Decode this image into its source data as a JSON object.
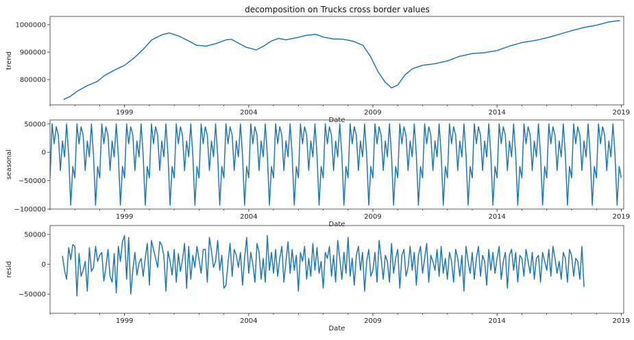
{
  "chart_data": {
    "title": "decomposition on Trucks cross border values",
    "xlabel": "Date",
    "x_ticks": [
      "1999",
      "2004",
      "2009",
      "2014",
      "2019"
    ],
    "x_range_years": [
      1996.0,
      2019.1
    ],
    "panels": [
      {
        "name": "trend",
        "type": "line",
        "ylabel": "trend",
        "ylim": [
          708000,
          1030000
        ],
        "y_ticks": [
          800000,
          900000,
          1000000
        ],
        "y_tick_labels": [
          "800000",
          "900000",
          "1000000"
        ],
        "anchors": [
          [
            1996.55,
            728000
          ],
          [
            1996.8,
            738000
          ],
          [
            1997.1,
            758000
          ],
          [
            1997.5,
            778000
          ],
          [
            1997.9,
            793000
          ],
          [
            1998.2,
            815000
          ],
          [
            1998.6,
            835000
          ],
          [
            1999.0,
            852000
          ],
          [
            1999.4,
            880000
          ],
          [
            1999.8,
            915000
          ],
          [
            2000.1,
            945000
          ],
          [
            2000.5,
            963000
          ],
          [
            2000.8,
            970000
          ],
          [
            2001.2,
            958000
          ],
          [
            2001.6,
            940000
          ],
          [
            2001.9,
            925000
          ],
          [
            2002.3,
            922000
          ],
          [
            2002.7,
            932000
          ],
          [
            2003.1,
            945000
          ],
          [
            2003.3,
            947000
          ],
          [
            2003.6,
            932000
          ],
          [
            2003.9,
            918000
          ],
          [
            2004.3,
            908000
          ],
          [
            2004.6,
            922000
          ],
          [
            2004.9,
            940000
          ],
          [
            2005.2,
            950000
          ],
          [
            2005.5,
            945000
          ],
          [
            2005.9,
            952000
          ],
          [
            2006.3,
            961000
          ],
          [
            2006.7,
            965000
          ],
          [
            2007.0,
            955000
          ],
          [
            2007.4,
            948000
          ],
          [
            2007.8,
            947000
          ],
          [
            2008.2,
            940000
          ],
          [
            2008.6,
            925000
          ],
          [
            2008.9,
            885000
          ],
          [
            2009.2,
            830000
          ],
          [
            2009.5,
            790000
          ],
          [
            2009.75,
            770000
          ],
          [
            2010.0,
            780000
          ],
          [
            2010.3,
            818000
          ],
          [
            2010.6,
            840000
          ],
          [
            2011.0,
            852000
          ],
          [
            2011.5,
            858000
          ],
          [
            2012.0,
            868000
          ],
          [
            2012.5,
            885000
          ],
          [
            2013.0,
            895000
          ],
          [
            2013.5,
            898000
          ],
          [
            2014.0,
            906000
          ],
          [
            2014.5,
            922000
          ],
          [
            2015.0,
            935000
          ],
          [
            2015.5,
            942000
          ],
          [
            2016.0,
            952000
          ],
          [
            2016.5,
            965000
          ],
          [
            2017.0,
            978000
          ],
          [
            2017.5,
            990000
          ],
          [
            2018.0,
            998000
          ],
          [
            2018.5,
            1010000
          ],
          [
            2018.95,
            1015000
          ]
        ]
      },
      {
        "name": "seasonal",
        "type": "line",
        "ylabel": "seasonal",
        "ylim": [
          -100000,
          57000
        ],
        "y_ticks": [
          -100000,
          -50000,
          0,
          50000
        ],
        "y_tick_labels": [
          "−100000",
          "−50000",
          "0",
          "50000"
        ],
        "start_year": 1996.0,
        "months": 277,
        "pattern": [
          -45000,
          50000,
          15000,
          45000,
          30000,
          -32000,
          20000,
          -8000,
          50000,
          -5000,
          -93000,
          -25000
        ]
      },
      {
        "name": "resid",
        "type": "line",
        "ylabel": "resid",
        "ylim": [
          -82000,
          65000
        ],
        "y_ticks": [
          -50000,
          0,
          50000
        ],
        "y_tick_labels": [
          "−50000",
          "0",
          "50000"
        ],
        "start_year": 1996.5,
        "values": [
          14000,
          -10000,
          -25000,
          28000,
          8000,
          33000,
          30000,
          -53000,
          18000,
          -20000,
          -10000,
          5000,
          -45000,
          28000,
          -12000,
          -5000,
          30000,
          5000,
          15000,
          20000,
          -28000,
          -5000,
          25000,
          -20000,
          -30000,
          18000,
          -48000,
          30000,
          5000,
          38000,
          48000,
          -25000,
          45000,
          -50000,
          -10000,
          20000,
          -18000,
          2000,
          10000,
          -20000,
          10000,
          35000,
          -35000,
          40000,
          25000,
          10000,
          -5000,
          38000,
          32000,
          15000,
          -45000,
          22000,
          5000,
          -18000,
          25000,
          -30000,
          18000,
          -12000,
          8000,
          35000,
          -40000,
          30000,
          -25000,
          15000,
          -5000,
          30000,
          8000,
          -15000,
          25000,
          25000,
          -30000,
          45000,
          22000,
          -5000,
          5000,
          40000,
          -10000,
          15000,
          -40000,
          -35000,
          2000,
          35000,
          -20000,
          25000,
          15000,
          -5000,
          20000,
          -35000,
          10000,
          45000,
          -15000,
          20000,
          0,
          -30000,
          35000,
          20000,
          -25000,
          10000,
          -30000,
          48000,
          -10000,
          20000,
          -15000,
          25000,
          -20000,
          10000,
          30000,
          -30000,
          5000,
          38000,
          -15000,
          25000,
          -10000,
          15000,
          -45000,
          20000,
          5000,
          30000,
          -25000,
          10000,
          -20000,
          35000,
          -10000,
          28000,
          -15000,
          5000,
          -40000,
          20000,
          10000,
          30000,
          -20000,
          15000,
          -30000,
          40000,
          10000,
          -25000,
          20000,
          -15000,
          45000,
          -20000,
          10000,
          -35000,
          15000,
          30000,
          -10000,
          20000,
          -45000,
          5000,
          25000,
          -20000,
          -10000,
          20000,
          -30000,
          40000,
          10000,
          -25000,
          15000,
          5000,
          -30000,
          35000,
          -15000,
          10000,
          25000,
          -40000,
          15000,
          25000,
          -20000,
          -5000,
          30000,
          -10000,
          20000,
          -35000,
          15000,
          30000,
          -15000,
          10000,
          35000,
          -30000,
          15000,
          5000,
          -10000,
          25000,
          -20000,
          30000,
          -15000,
          10000,
          -25000,
          20000,
          5000,
          -30000,
          25000,
          10000,
          -20000,
          15000,
          -45000,
          30000,
          5000,
          -15000,
          20000,
          -25000,
          10000,
          30000,
          -20000,
          15000,
          5000,
          -35000,
          25000,
          -10000,
          20000,
          -15000,
          10000,
          30000,
          -25000,
          5000,
          20000,
          -40000,
          15000,
          25000,
          -10000,
          20000,
          -30000,
          15000,
          10000,
          -20000,
          25000,
          5000,
          -15000,
          20000,
          -25000,
          10000,
          15000,
          -30000,
          20000,
          5000,
          -10000,
          25000,
          -20000,
          30000,
          10000,
          -15000,
          5000,
          -25000,
          20000,
          10000,
          -30000,
          25000,
          15000,
          -20000,
          10000,
          5000,
          -25000,
          30000,
          -38000
        ]
      }
    ]
  }
}
